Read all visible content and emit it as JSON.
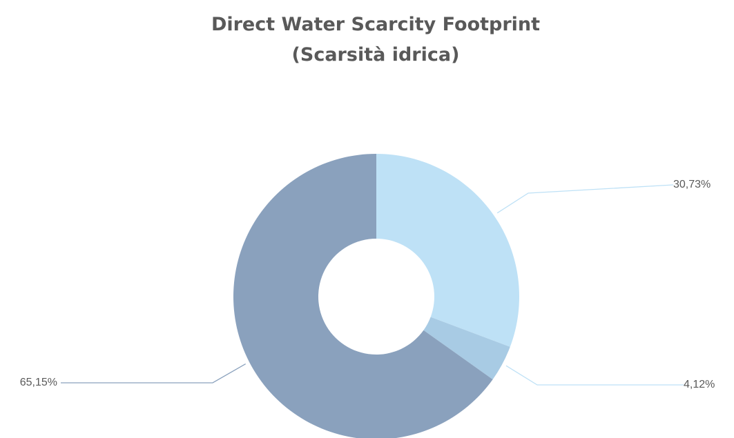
{
  "chart_data": {
    "type": "pie",
    "title": "Direct Water Scarcity Footprint",
    "subtitle": "(Scarsità idrica)",
    "categories": [
      "",
      "",
      ""
    ],
    "values": [
      30.73,
      4.12,
      65.15
    ],
    "data_labels": [
      "30,73%",
      "4,12%",
      "65,15%"
    ],
    "colors": [
      "#bee1f6",
      "#a8cbe4",
      "#8aa1bd"
    ],
    "donut": true,
    "legend": "none"
  }
}
